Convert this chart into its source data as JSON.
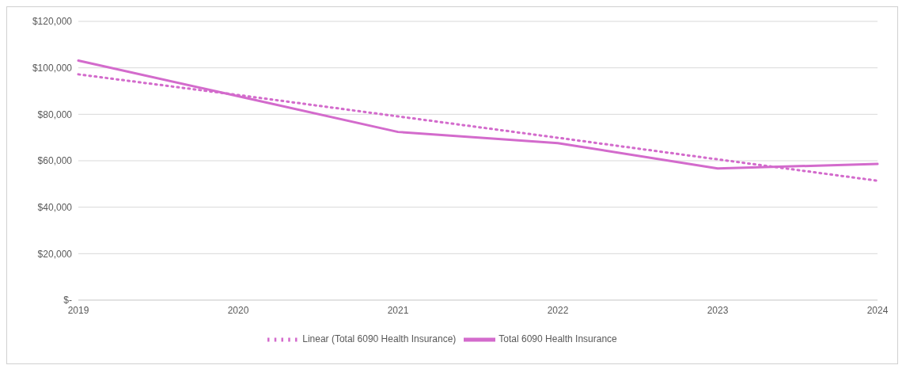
{
  "chart_data": {
    "type": "line",
    "categories": [
      "2019",
      "2020",
      "2021",
      "2022",
      "2023",
      "2024"
    ],
    "series": [
      {
        "name": "Total 6090 Health Insurance",
        "color": "#d36bcc",
        "values": [
          103100,
          87800,
          72400,
          67600,
          56700,
          58600
        ],
        "line_style": "solid"
      },
      {
        "name": "Linear (Total 6090 Health Insurance)",
        "color": "#d36bcc",
        "values": [
          97200,
          88300,
          79100,
          69900,
          60600,
          51400
        ],
        "line_style": "dotted"
      }
    ],
    "ylim": [
      0,
      120000
    ],
    "yticks": [
      {
        "value": 0,
        "label": "$-"
      },
      {
        "value": 20000,
        "label": "$20,000"
      },
      {
        "value": 40000,
        "label": "$40,000"
      },
      {
        "value": 60000,
        "label": "$60,000"
      },
      {
        "value": 80000,
        "label": "$80,000"
      },
      {
        "value": 100000,
        "label": "$100,000"
      },
      {
        "value": 120000,
        "label": "$120,000"
      }
    ],
    "grid": "y",
    "legend": "bottom",
    "marker": "none"
  }
}
